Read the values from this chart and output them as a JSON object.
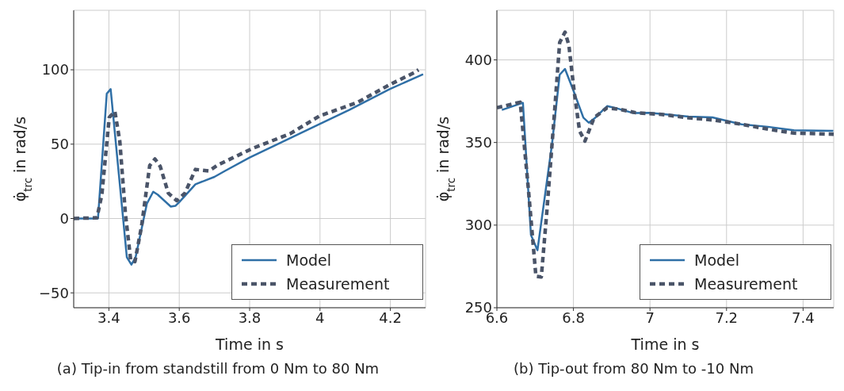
{
  "chart_data": [
    {
      "type": "line",
      "xlabel": "Time in s",
      "ylabel": "φ̇$_{trc}$ in rad/s",
      "xlim": [
        3.3,
        4.3
      ],
      "ylim": [
        -60,
        140
      ],
      "xticks": [
        3.4,
        3.6,
        3.8,
        4,
        4.2
      ],
      "yticks": [
        {
          "value": -50,
          "label": "−50"
        },
        0,
        50,
        100
      ],
      "grid": true,
      "legend": "bottom right",
      "marker": "none",
      "annotations": [
        "(a)  Tip-in from standstill from 0 Nm to 80 Nm"
      ],
      "series": [
        {
          "name": "Model",
          "color": "#2f6fa6",
          "line_style": "solid",
          "x": [
            3.3,
            3.369,
            3.394,
            3.405,
            3.451,
            3.464,
            3.476,
            3.508,
            3.526,
            3.539,
            3.576,
            3.589,
            3.6,
            3.646,
            3.7,
            3.73,
            3.8,
            3.999,
            4.083,
            4.198,
            4.293
          ],
          "values": [
            0,
            0,
            84,
            87,
            -26,
            -31,
            -26,
            10,
            18,
            16,
            8,
            8.5,
            11,
            23,
            28,
            32,
            41,
            63.5,
            73,
            87,
            97
          ]
        },
        {
          "name": "Measurement",
          "color": "#4a5468",
          "line_style": "dashed",
          "x": [
            3.3,
            3.366,
            3.38,
            3.401,
            3.417,
            3.431,
            3.447,
            3.462,
            3.474,
            3.493,
            3.516,
            3.531,
            3.546,
            3.569,
            3.593,
            3.616,
            3.646,
            3.684,
            3.71,
            3.807,
            3.915,
            3.999,
            4.106,
            4.198,
            4.267,
            4.28
          ],
          "values": [
            0,
            0.5,
            16,
            68,
            72,
            52,
            3,
            -28,
            -29,
            -5,
            35.6,
            40,
            35,
            17,
            12,
            17,
            33,
            32,
            36,
            47,
            57,
            69,
            78,
            90,
            98,
            100
          ]
        }
      ]
    },
    {
      "type": "line",
      "xlabel": "Time in s",
      "ylabel": "φ̇$_{trc}$ in rad/s",
      "xlim": [
        6.6,
        7.48
      ],
      "ylim": [
        250,
        430
      ],
      "xticks": [
        6.6,
        6.8,
        7,
        7.2,
        7.4
      ],
      "yticks": [
        250,
        300,
        350,
        400
      ],
      "grid": true,
      "legend": "bottom right",
      "marker": "none",
      "annotations": [
        "(b)  Tip-out from 80 Nm to -10 Nm"
      ],
      "series": [
        {
          "name": "Model",
          "color": "#2f6fa6",
          "line_style": "solid",
          "x": [
            6.613,
            6.668,
            6.689,
            6.706,
            6.744,
            6.764,
            6.778,
            6.799,
            6.826,
            6.84,
            6.857,
            6.888,
            6.908,
            6.957,
            6.999,
            7.101,
            7.163,
            7.239,
            7.308,
            7.376,
            7.479
          ],
          "values": [
            369.7,
            374,
            294,
            284.8,
            349,
            391,
            394.5,
            382,
            365,
            362,
            365,
            372,
            371,
            367.8,
            368,
            365.7,
            365.2,
            361,
            359.5,
            357.4,
            357
          ]
        },
        {
          "name": "Measurement",
          "color": "#4a5468",
          "line_style": "dashed",
          "x": [
            6.6,
            6.661,
            6.682,
            6.702,
            6.716,
            6.73,
            6.751,
            6.764,
            6.778,
            6.788,
            6.802,
            6.816,
            6.83,
            6.854,
            6.888,
            6.922,
            6.963,
            7.03,
            7.1,
            7.17,
            7.24,
            7.31,
            7.376,
            7.48
          ],
          "values": [
            371,
            374.4,
            322.5,
            269,
            268.6,
            306.7,
            369.7,
            410.5,
            416.8,
            409,
            380.7,
            357,
            350.8,
            365,
            371,
            370,
            368,
            367,
            365,
            363.5,
            361,
            358,
            355.7,
            355
          ]
        }
      ]
    }
  ]
}
